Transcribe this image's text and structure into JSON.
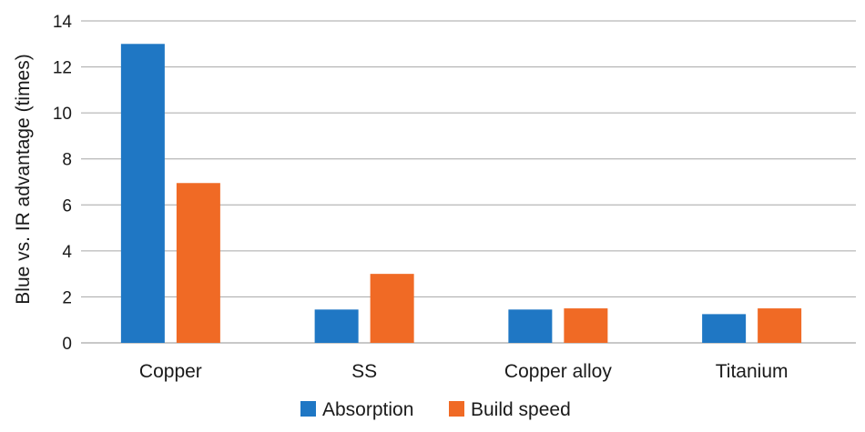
{
  "chart_data": {
    "type": "bar",
    "categories": [
      "Copper",
      "SS",
      "Copper alloy",
      "Titanium"
    ],
    "series": [
      {
        "name": "Absorption",
        "color": "#1f77c4",
        "values": [
          13,
          1.45,
          1.45,
          1.25
        ]
      },
      {
        "name": "Build speed",
        "color": "#f06a25",
        "values": [
          6.95,
          3.0,
          1.5,
          1.5
        ]
      }
    ],
    "title": "",
    "xlabel": "",
    "ylabel": "Blue vs. IR advantage (times)",
    "ylim": [
      0,
      14
    ],
    "yticks": [
      "0",
      "2",
      "4",
      "6",
      "8",
      "10",
      "12",
      "14"
    ],
    "grid": "horizontal",
    "legend_position": "bottom"
  }
}
